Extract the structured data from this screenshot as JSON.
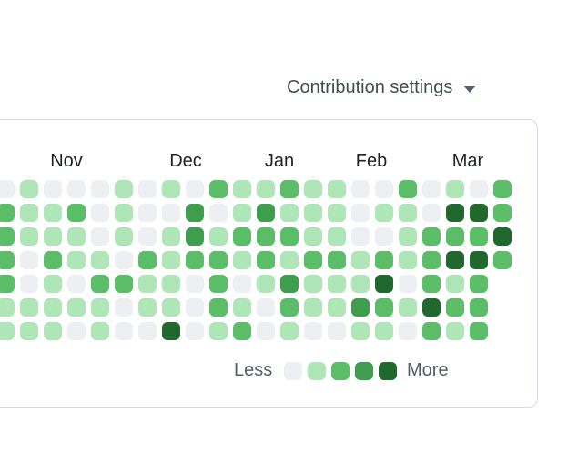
{
  "header": {
    "contribution_settings": "Contribution settings",
    "caret_icon": "chevron-down"
  },
  "chart_data": {
    "type": "heatmap",
    "month_labels": [
      "Nov",
      "Dec",
      "Jan",
      "Feb",
      "Mar"
    ],
    "legend": {
      "less": "Less",
      "more": "More"
    },
    "level_colors": [
      "#edeff2",
      "#aee6b8",
      "#5cbd68",
      "#3f9e4d",
      "#21682f"
    ],
    "rows": [
      [
        0,
        1,
        0,
        0,
        0,
        1,
        0,
        1,
        0,
        2,
        1,
        1,
        2,
        1,
        1,
        0,
        0,
        2,
        0,
        1,
        0,
        2
      ],
      [
        2,
        1,
        1,
        2,
        0,
        1,
        0,
        0,
        3,
        0,
        1,
        3,
        1,
        1,
        1,
        0,
        1,
        1,
        0,
        4,
        4,
        2
      ],
      [
        2,
        1,
        1,
        1,
        0,
        1,
        0,
        1,
        3,
        1,
        2,
        2,
        2,
        1,
        1,
        0,
        0,
        1,
        2,
        2,
        2,
        4
      ],
      [
        2,
        0,
        2,
        1,
        1,
        0,
        2,
        1,
        2,
        2,
        1,
        2,
        1,
        2,
        2,
        1,
        2,
        1,
        2,
        4,
        4,
        2
      ],
      [
        2,
        0,
        1,
        0,
        2,
        2,
        1,
        1,
        0,
        2,
        0,
        1,
        3,
        1,
        1,
        1,
        4,
        0,
        2,
        1,
        2
      ],
      [
        1,
        1,
        1,
        1,
        1,
        0,
        1,
        1,
        0,
        2,
        1,
        0,
        2,
        1,
        1,
        3,
        2,
        1,
        4,
        2,
        2
      ],
      [
        1,
        1,
        1,
        0,
        1,
        0,
        0,
        4,
        0,
        1,
        2,
        0,
        1,
        0,
        0,
        1,
        1,
        0,
        2,
        1,
        2
      ]
    ]
  }
}
